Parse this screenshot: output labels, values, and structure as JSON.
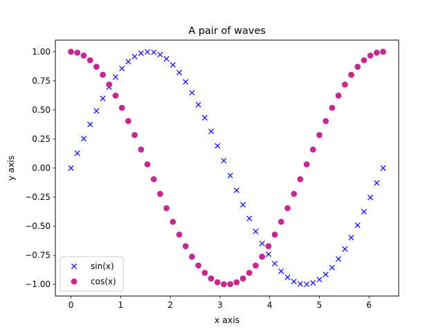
{
  "chart_data": {
    "type": "scatter",
    "title": "A pair of waves",
    "xlabel": "x axis",
    "ylabel": "y axis",
    "xlim": [
      -0.314,
      6.597
    ],
    "ylim": [
      -1.1,
      1.1
    ],
    "xticks": [
      0,
      1,
      2,
      3,
      4,
      5,
      6
    ],
    "xtick_labels": [
      "0",
      "1",
      "2",
      "3",
      "4",
      "5",
      "6"
    ],
    "yticks": [
      -1.0,
      -0.75,
      -0.5,
      -0.25,
      0.0,
      0.25,
      0.5,
      0.75,
      1.0
    ],
    "ytick_labels": [
      "−1.00",
      "−0.75",
      "−0.50",
      "−0.25",
      "0.00",
      "0.25",
      "0.50",
      "0.75",
      "1.00"
    ],
    "grid": false,
    "legend_position": "lower-left",
    "x": [
      0.0,
      0.128,
      0.256,
      0.385,
      0.513,
      0.641,
      0.769,
      0.898,
      1.026,
      1.154,
      1.282,
      1.41,
      1.539,
      1.667,
      1.795,
      1.923,
      2.051,
      2.18,
      2.308,
      2.436,
      2.564,
      2.693,
      2.821,
      2.949,
      3.077,
      3.206,
      3.334,
      3.462,
      3.59,
      3.718,
      3.847,
      3.975,
      4.103,
      4.231,
      4.36,
      4.488,
      4.616,
      4.744,
      4.872,
      5.001,
      5.129,
      5.257,
      5.385,
      5.514,
      5.642,
      5.77,
      5.898,
      6.026,
      6.155,
      6.283
    ],
    "series": [
      {
        "name": "sin(x)",
        "marker": "x",
        "color": "#0000ff",
        "values": [
          0.0,
          0.128,
          0.253,
          0.375,
          0.491,
          0.598,
          0.696,
          0.782,
          0.856,
          0.915,
          0.959,
          0.987,
          0.999,
          0.995,
          0.975,
          0.939,
          0.887,
          0.821,
          0.741,
          0.648,
          0.545,
          0.433,
          0.315,
          0.191,
          0.064,
          -0.064,
          -0.191,
          -0.315,
          -0.433,
          -0.545,
          -0.648,
          -0.741,
          -0.821,
          -0.887,
          -0.939,
          -0.975,
          -0.995,
          -0.999,
          -0.987,
          -0.959,
          -0.915,
          -0.856,
          -0.782,
          -0.696,
          -0.598,
          -0.491,
          -0.375,
          -0.253,
          -0.128,
          0.0
        ]
      },
      {
        "name": "cos(x)",
        "marker": "o",
        "color": "#c7288f",
        "values": [
          1.0,
          0.992,
          0.967,
          0.927,
          0.871,
          0.802,
          0.718,
          0.623,
          0.518,
          0.404,
          0.284,
          0.159,
          0.032,
          -0.096,
          -0.222,
          -0.345,
          -0.462,
          -0.572,
          -0.672,
          -0.762,
          -0.838,
          -0.901,
          -0.949,
          -0.982,
          -0.998,
          -0.998,
          -0.982,
          -0.949,
          -0.901,
          -0.838,
          -0.762,
          -0.672,
          -0.572,
          -0.462,
          -0.345,
          -0.222,
          -0.096,
          0.032,
          0.159,
          0.284,
          0.404,
          0.518,
          0.623,
          0.718,
          0.802,
          0.871,
          0.927,
          0.967,
          0.992,
          1.0
        ]
      }
    ]
  }
}
